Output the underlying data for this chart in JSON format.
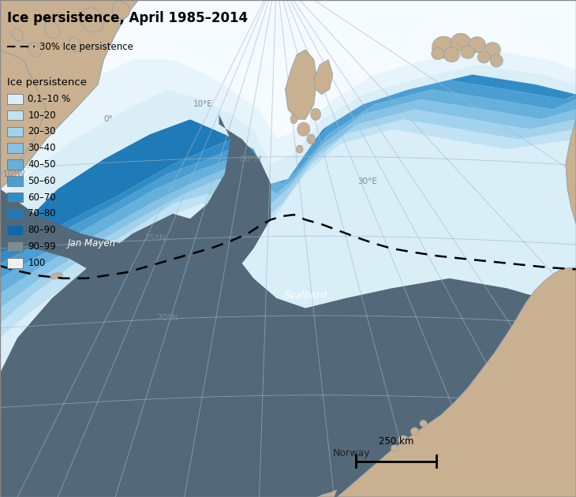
{
  "title": "Ice persistence, April 1985–2014",
  "dashed_label": "30% Ice persistence",
  "legend_title": "Ice persistence",
  "legend_entries": [
    {
      "label": "0,1–10 %",
      "color": "#daeef8"
    },
    {
      "label": "10–20",
      "color": "#c0e2f3"
    },
    {
      "label": "20–30",
      "color": "#a3d3ec"
    },
    {
      "label": "30–40",
      "color": "#85c2e5"
    },
    {
      "label": "40–50",
      "color": "#66b0dc"
    },
    {
      "label": "50–60",
      "color": "#4a9ed2"
    },
    {
      "label": "60–70",
      "color": "#318cc5"
    },
    {
      "label": "70–80",
      "color": "#1f7ab8"
    },
    {
      "label": "80–90",
      "color": "#1068aa"
    },
    {
      "label": "90–99",
      "color": "#7a8c96"
    },
    {
      "label": "100",
      "color": "#f0f0f0"
    }
  ],
  "land_color": "#c8b090",
  "land_edge": "#7a9bb5",
  "open_water_color": "#536878",
  "background_color": "#ffffff",
  "grid_color": "#9fb8c8",
  "title_fontsize": 12,
  "legend_fontsize": 8.5,
  "scale_bar_label": "250 km"
}
